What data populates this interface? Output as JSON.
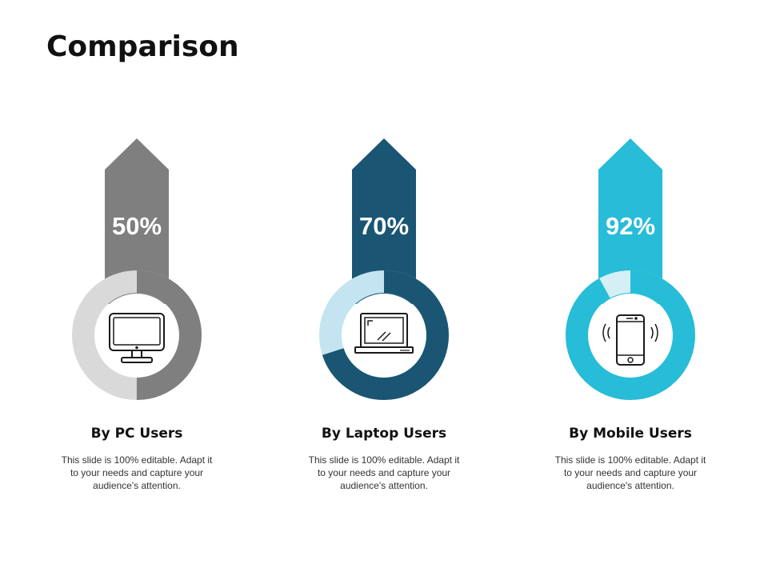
{
  "title": "Comparison",
  "chart_data": {
    "type": "donut",
    "items": [
      {
        "label": "By PC Users",
        "value": 50,
        "value_label": "50%",
        "icon": "desktop-monitor-icon",
        "color": "#7f7f7f",
        "track_color": "#d9d9d9",
        "description": "This slide is 100% editable. Adapt it to your needs and capture your audience's attention."
      },
      {
        "label": "By Laptop Users",
        "value": 70,
        "value_label": "70%",
        "icon": "laptop-icon",
        "color": "#1a5673",
        "track_color": "#c3e4f0",
        "description": "This slide is 100% editable. Adapt it to your needs and capture your audience's attention."
      },
      {
        "label": "By Mobile Users",
        "value": 92,
        "value_label": "92%",
        "icon": "smartphone-icon",
        "color": "#27bcd7",
        "track_color": "#d4f0f6",
        "description": "This slide is 100% editable. Adapt it to your needs and capture your audience's attention."
      }
    ]
  }
}
